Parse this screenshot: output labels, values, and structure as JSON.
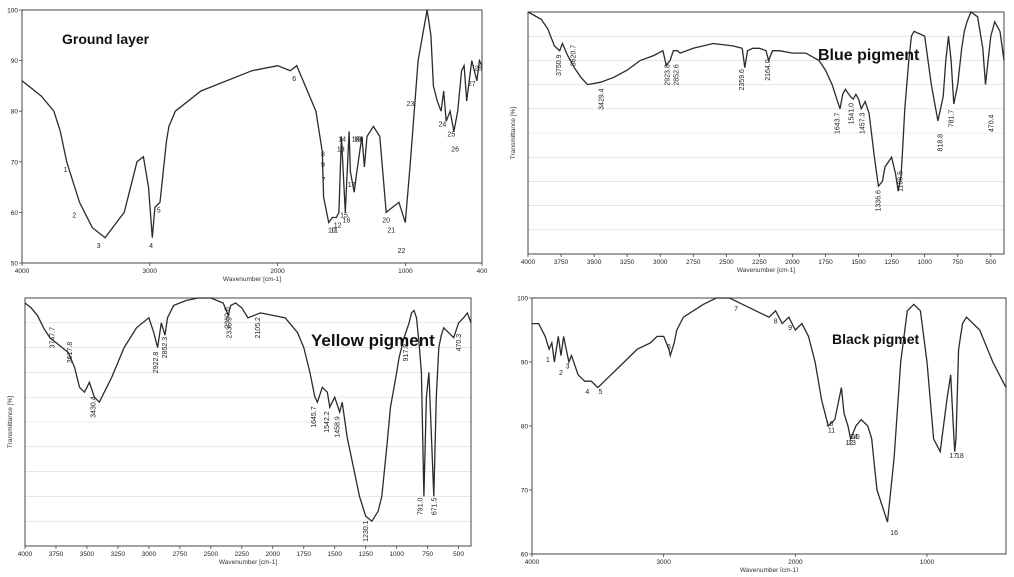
{
  "chart_data": [
    {
      "type": "line",
      "title": "Ground layer",
      "xlabel": "Wavenumber [cm-1]",
      "ylabel": "",
      "x_reversed": true,
      "xlim": [
        4000,
        400
      ],
      "ylim": [
        50,
        100
      ],
      "xticks": [
        "4000",
        "3000",
        "2000",
        "1000",
        "400"
      ],
      "yticks": [
        "100",
        "90",
        "80",
        "70",
        "60",
        "50"
      ],
      "series": [
        {
          "x": [
            4000,
            3850,
            3750,
            3700,
            3650,
            3550,
            3450,
            3350,
            3200,
            3100,
            3050,
            3010,
            2980,
            2960,
            2920,
            2870,
            2850,
            2800,
            2600,
            2200,
            2000,
            1900,
            1850,
            1800,
            1700,
            1650,
            1640,
            1600,
            1570,
            1540,
            1520,
            1500,
            1470,
            1440,
            1430,
            1400,
            1380,
            1340,
            1320,
            1300,
            1250,
            1200,
            1150,
            1100,
            1050,
            1000,
            960,
            900,
            830,
            800,
            780,
            750,
            720,
            700,
            680,
            650,
            620,
            590,
            560,
            540,
            520,
            500,
            480,
            460,
            440,
            420,
            400
          ],
          "y": [
            86,
            83,
            80,
            76,
            70,
            62,
            57,
            55,
            60,
            70,
            71,
            65,
            55,
            61,
            62,
            74,
            77,
            80,
            84,
            88,
            89,
            88,
            89,
            86,
            80,
            72,
            63,
            58,
            59,
            59,
            60,
            75,
            60,
            76,
            68,
            64,
            68,
            75,
            69,
            75,
            77,
            75,
            60,
            61,
            62,
            58,
            70,
            90,
            100,
            95,
            85,
            82,
            80,
            84,
            78,
            80,
            76,
            80,
            88,
            89,
            82,
            86,
            90,
            88,
            86,
            90,
            89
          ]
        }
      ],
      "peak_labels": [
        {
          "text": "1",
          "x": 3660,
          "y": 68
        },
        {
          "text": "2",
          "x": 3590,
          "y": 59
        },
        {
          "text": "3",
          "x": 3400,
          "y": 53
        },
        {
          "text": "4",
          "x": 2990,
          "y": 53
        },
        {
          "text": "5",
          "x": 2930,
          "y": 60
        },
        {
          "text": "6",
          "x": 1870,
          "y": 86
        },
        {
          "text": "7",
          "x": 1640,
          "y": 66
        },
        {
          "text": "8",
          "x": 1645,
          "y": 71
        },
        {
          "text": "9",
          "x": 1645,
          "y": 69
        },
        {
          "text": "10",
          "x": 1575,
          "y": 56
        },
        {
          "text": "11",
          "x": 1555,
          "y": 56
        },
        {
          "text": "12",
          "x": 1530,
          "y": 57
        },
        {
          "text": "13",
          "x": 1505,
          "y": 72
        },
        {
          "text": "14",
          "x": 1495,
          "y": 74
        },
        {
          "text": "15",
          "x": 1480,
          "y": 59
        },
        {
          "text": "16",
          "x": 1460,
          "y": 58
        },
        {
          "text": "17",
          "x": 1420,
          "y": 65
        },
        {
          "text": "18",
          "x": 1390,
          "y": 74
        },
        {
          "text": "19",
          "x": 1375,
          "y": 74
        },
        {
          "text": "20",
          "x": 1360,
          "y": 74
        },
        {
          "text": "20",
          "x": 1150,
          "y": 58
        },
        {
          "text": "21",
          "x": 1110,
          "y": 56
        },
        {
          "text": "22",
          "x": 1030,
          "y": 52
        },
        {
          "text": "23",
          "x": 960,
          "y": 81
        },
        {
          "text": "24",
          "x": 710,
          "y": 77
        },
        {
          "text": "25",
          "x": 640,
          "y": 75
        },
        {
          "text": "26",
          "x": 610,
          "y": 72
        },
        {
          "text": "27",
          "x": 480,
          "y": 85
        },
        {
          "text": "28",
          "x": 430,
          "y": 88
        }
      ]
    },
    {
      "type": "line",
      "title": "Blue pigment",
      "xlabel": "Wavenumber [cm-1]",
      "ylabel": "Transmittance [%]",
      "x_reversed": true,
      "xlim": [
        4000,
        400
      ],
      "ylim": [
        0,
        100
      ],
      "xticks": [
        "4000",
        "3750",
        "3500",
        "3250",
        "3000",
        "2750",
        "2500",
        "2250",
        "2000",
        "1750",
        "1500",
        "1250",
        "1000",
        "750",
        "500"
      ],
      "yticks": [],
      "series": [
        {
          "x": [
            4000,
            3900,
            3850,
            3800,
            3760,
            3740,
            3700,
            3650,
            3600,
            3550,
            3450,
            3350,
            3250,
            3150,
            3050,
            2980,
            2955,
            2925,
            2900,
            2870,
            2850,
            2750,
            2600,
            2450,
            2380,
            2360,
            2340,
            2300,
            2250,
            2200,
            2180,
            2150,
            2100,
            2000,
            1900,
            1800,
            1750,
            1700,
            1640,
            1620,
            1600,
            1560,
            1540,
            1520,
            1500,
            1480,
            1450,
            1420,
            1380,
            1350,
            1320,
            1300,
            1250,
            1220,
            1200,
            1180,
            1170,
            1150,
            1120,
            1100,
            1080,
            1000,
            950,
            900,
            860,
            840,
            820,
            800,
            780,
            750,
            720,
            700,
            680,
            650,
            600,
            560,
            540,
            520,
            500,
            470,
            430,
            400
          ],
          "y": [
            100,
            97,
            93,
            86,
            84,
            87,
            82,
            77,
            73,
            70,
            71,
            73,
            76,
            80,
            82,
            84,
            78,
            80,
            84,
            84,
            83,
            85,
            87,
            86,
            85,
            77,
            84,
            85,
            85,
            84,
            80,
            84,
            84,
            83,
            83,
            80,
            76,
            70,
            60,
            66,
            68,
            65,
            64,
            66,
            64,
            60,
            63,
            58,
            40,
            28,
            30,
            36,
            40,
            33,
            26,
            32,
            40,
            60,
            80,
            90,
            92,
            90,
            70,
            55,
            65,
            80,
            90,
            80,
            62,
            70,
            85,
            92,
            96,
            100,
            98,
            85,
            70,
            80,
            90,
            96,
            92,
            80
          ]
        }
      ],
      "peak_labels": [
        {
          "text": "3750.9",
          "x": 3750,
          "y": 78
        },
        {
          "text": "3620.7",
          "x": 3640,
          "y": 82
        },
        {
          "text": "3429.4",
          "x": 3430,
          "y": 64
        },
        {
          "text": "2923.8",
          "x": 2930,
          "y": 74
        },
        {
          "text": "2852.6",
          "x": 2860,
          "y": 74
        },
        {
          "text": "2359.6",
          "x": 2365,
          "y": 72
        },
        {
          "text": "2164.0",
          "x": 2170,
          "y": 76
        },
        {
          "text": "1643.7",
          "x": 1645,
          "y": 54
        },
        {
          "text": "1541.0",
          "x": 1540,
          "y": 58
        },
        {
          "text": "1457.3",
          "x": 1455,
          "y": 54
        },
        {
          "text": "1336.6",
          "x": 1335,
          "y": 22
        },
        {
          "text": "1168.5",
          "x": 1168,
          "y": 30
        },
        {
          "text": "818.8",
          "x": 865,
          "y": 46
        },
        {
          "text": "781.7",
          "x": 780,
          "y": 56
        },
        {
          "text": "470.4",
          "x": 480,
          "y": 54
        }
      ]
    },
    {
      "type": "line",
      "title": "Yellow pigment",
      "xlabel": "Wavenumber [cm-1]",
      "ylabel": "Transmittance [%]",
      "x_reversed": true,
      "xlim": [
        4000,
        400
      ],
      "ylim": [
        0,
        100
      ],
      "xticks": [
        "4000",
        "3750",
        "3500",
        "3250",
        "3000",
        "2750",
        "2500",
        "2250",
        "2000",
        "1750",
        "1500",
        "1250",
        "1000",
        "750",
        "500"
      ],
      "yticks": [],
      "series": [
        {
          "x": [
            4000,
            3950,
            3900,
            3850,
            3800,
            3750,
            3700,
            3650,
            3600,
            3560,
            3520,
            3480,
            3440,
            3400,
            3300,
            3200,
            3100,
            3000,
            2960,
            2930,
            2900,
            2870,
            2850,
            2800,
            2700,
            2600,
            2500,
            2400,
            2360,
            2340,
            2300,
            2250,
            2200,
            2100,
            2000,
            1900,
            1800,
            1750,
            1700,
            1660,
            1640,
            1600,
            1560,
            1540,
            1500,
            1460,
            1440,
            1400,
            1350,
            1300,
            1250,
            1200,
            1150,
            1120,
            1100,
            1080,
            1050,
            1000,
            980,
            960,
            940,
            900,
            880,
            860,
            840,
            820,
            800,
            780,
            760,
            740,
            700,
            680,
            660,
            640,
            620,
            580,
            540,
            500,
            460,
            430,
            400
          ],
          "y": [
            98,
            96,
            93,
            88,
            84,
            82,
            80,
            78,
            72,
            64,
            62,
            66,
            60,
            58,
            68,
            80,
            88,
            92,
            86,
            80,
            90,
            85,
            92,
            97,
            99,
            100,
            100,
            98,
            93,
            97,
            98,
            96,
            92,
            94,
            93,
            92,
            86,
            80,
            70,
            60,
            58,
            64,
            62,
            56,
            60,
            54,
            58,
            44,
            32,
            20,
            12,
            10,
            14,
            20,
            30,
            40,
            56,
            70,
            76,
            80,
            84,
            90,
            94,
            95,
            92,
            82,
            70,
            20,
            60,
            70,
            20,
            60,
            80,
            85,
            88,
            86,
            84,
            90,
            92,
            94,
            90
          ]
        }
      ],
      "peak_labels": [
        {
          "text": "3747.7",
          "x": 3760,
          "y": 84
        },
        {
          "text": "3617.8",
          "x": 3620,
          "y": 78
        },
        {
          "text": "3430.4",
          "x": 3430,
          "y": 56
        },
        {
          "text": "2922.8",
          "x": 2925,
          "y": 74
        },
        {
          "text": "2852.3",
          "x": 2855,
          "y": 80
        },
        {
          "text": "2360.6",
          "x": 2350,
          "y": 92
        },
        {
          "text": "2335.9",
          "x": 2335,
          "y": 88
        },
        {
          "text": "2105.2",
          "x": 2105,
          "y": 88
        },
        {
          "text": "1645.7",
          "x": 1650,
          "y": 52
        },
        {
          "text": "1542.2",
          "x": 1545,
          "y": 50
        },
        {
          "text": "1458.9",
          "x": 1460,
          "y": 48
        },
        {
          "text": "1230.1",
          "x": 1230,
          "y": 6
        },
        {
          "text": "917.8",
          "x": 910,
          "y": 78
        },
        {
          "text": "791.0",
          "x": 790,
          "y": 16
        },
        {
          "text": "671.5",
          "x": 680,
          "y": 16
        },
        {
          "text": "470.3",
          "x": 480,
          "y": 82
        }
      ]
    },
    {
      "type": "line",
      "title": "Black pigmet",
      "xlabel": "Wavenumber [cm-1]",
      "ylabel": "",
      "x_reversed": true,
      "xlim": [
        4000,
        400
      ],
      "ylim": [
        60,
        100
      ],
      "xticks": [
        "4000",
        "3000",
        "2000",
        "1000"
      ],
      "yticks": [
        "100",
        "90",
        "80",
        "70",
        "60"
      ],
      "series": [
        {
          "x": [
            4000,
            3950,
            3900,
            3870,
            3850,
            3830,
            3800,
            3780,
            3760,
            3740,
            3720,
            3700,
            3650,
            3600,
            3550,
            3500,
            3450,
            3400,
            3350,
            3300,
            3200,
            3100,
            3050,
            3000,
            2960,
            2950,
            2920,
            2900,
            2850,
            2700,
            2600,
            2500,
            2400,
            2300,
            2200,
            2150,
            2100,
            2050,
            2000,
            1950,
            1900,
            1850,
            1800,
            1750,
            1700,
            1650,
            1630,
            1600,
            1580,
            1560,
            1540,
            1500,
            1450,
            1420,
            1400,
            1380,
            1300,
            1250,
            1200,
            1150,
            1100,
            1050,
            1000,
            950,
            900,
            850,
            820,
            800,
            790,
            780,
            760,
            730,
            700,
            600,
            500,
            450,
            400
          ],
          "y": [
            96,
            96,
            94,
            92,
            93,
            90,
            94,
            91,
            94,
            92,
            90,
            91,
            88,
            87,
            87,
            86,
            87,
            88,
            89,
            90,
            92,
            93,
            94,
            94,
            92,
            91,
            93,
            95,
            97,
            99,
            100,
            100,
            99,
            98,
            97,
            98,
            96,
            97,
            95,
            96,
            94,
            90,
            84,
            80,
            81,
            86,
            82,
            80,
            78,
            79,
            80,
            81,
            80,
            78,
            74,
            70,
            65,
            75,
            90,
            98,
            99,
            98,
            90,
            78,
            76,
            84,
            88,
            80,
            76,
            78,
            92,
            96,
            97,
            95,
            90,
            88,
            86
          ]
        }
      ],
      "peak_labels": [
        {
          "text": "1",
          "x": 3880,
          "y": 90
        },
        {
          "text": "2",
          "x": 3780,
          "y": 88
        },
        {
          "text": "3",
          "x": 3730,
          "y": 89
        },
        {
          "text": "4",
          "x": 3580,
          "y": 85
        },
        {
          "text": "5",
          "x": 3480,
          "y": 85
        },
        {
          "text": "6",
          "x": 2960,
          "y": 92
        },
        {
          "text": "7",
          "x": 2450,
          "y": 98
        },
        {
          "text": "8",
          "x": 2150,
          "y": 96
        },
        {
          "text": "9",
          "x": 2040,
          "y": 95
        },
        {
          "text": "10",
          "x": 1740,
          "y": 80
        },
        {
          "text": "11",
          "x": 1725,
          "y": 79
        },
        {
          "text": "12",
          "x": 1590,
          "y": 77
        },
        {
          "text": "13",
          "x": 1570,
          "y": 77
        },
        {
          "text": "14",
          "x": 1555,
          "y": 78
        },
        {
          "text": "15",
          "x": 1540,
          "y": 78
        },
        {
          "text": "16",
          "x": 1250,
          "y": 63
        },
        {
          "text": "17",
          "x": 800,
          "y": 75
        },
        {
          "text": "18",
          "x": 750,
          "y": 75
        }
      ]
    }
  ]
}
